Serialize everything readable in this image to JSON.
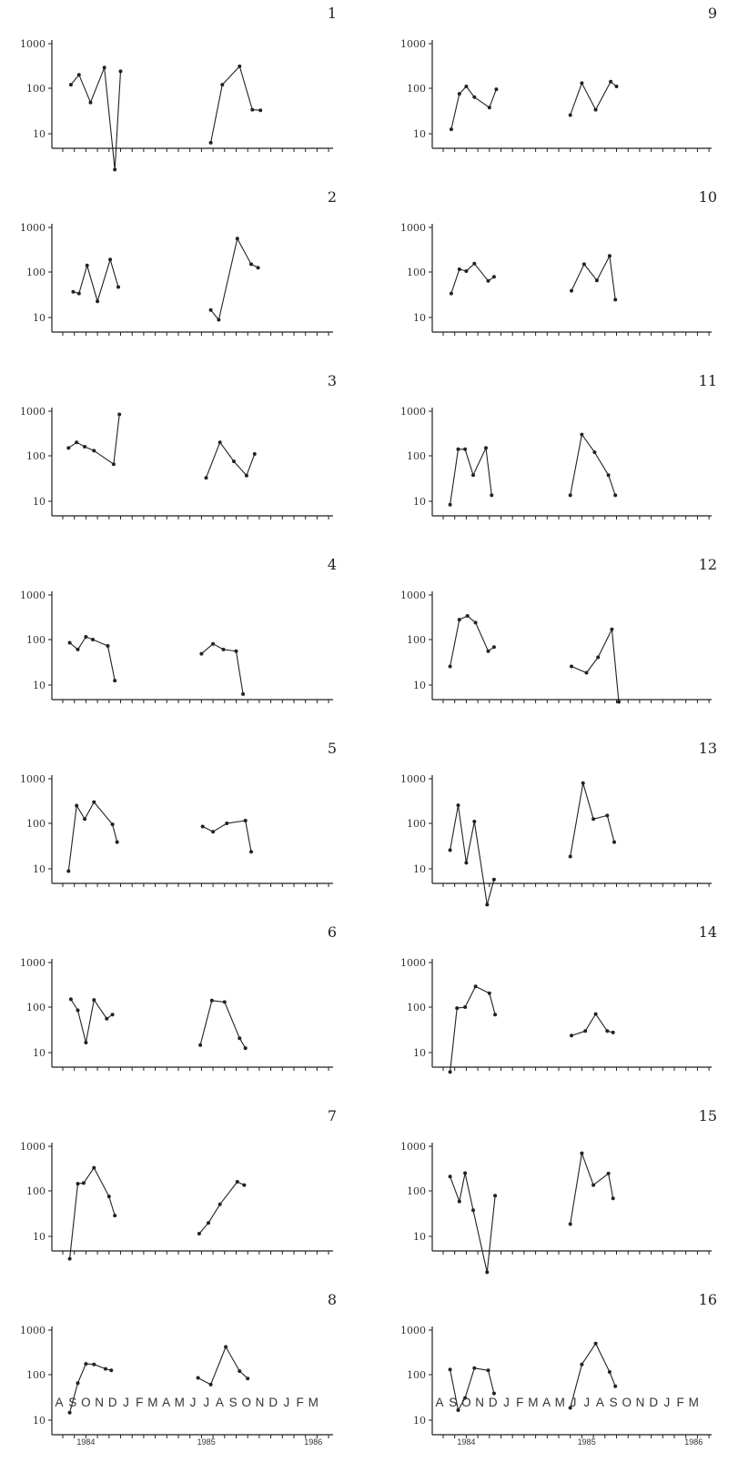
{
  "chart_data": {
    "type": "line",
    "y_scale": "log",
    "ylim": [
      1.5,
      1000
    ],
    "y_ticks": [
      "1000",
      "100",
      "10"
    ],
    "x_ticks": 24,
    "month_labels": [
      "A",
      "S",
      "O",
      "N",
      "D",
      "J",
      "F",
      "M",
      "A",
      "M",
      "J",
      "J",
      "A",
      "S",
      "O",
      "N",
      "D",
      "J",
      "F",
      "M"
    ],
    "year_labels": [
      "1984",
      "1985",
      "1986"
    ],
    "grid": false,
    "legend": "none",
    "panels": [
      {
        "label": "1",
        "segments": [
          [
            [
              0.7,
              120
            ],
            [
              1.4,
              200
            ],
            [
              2.4,
              48
            ],
            [
              3.6,
              290
            ],
            [
              4.5,
              1.5
            ],
            [
              5.0,
              240
            ]
          ],
          [
            [
              12.8,
              6
            ],
            [
              13.8,
              120
            ],
            [
              15.3,
              310
            ],
            [
              16.4,
              33
            ],
            [
              17.1,
              32
            ]
          ]
        ]
      },
      {
        "label": "2",
        "segments": [
          [
            [
              0.9,
              36
            ],
            [
              1.4,
              33
            ],
            [
              2.1,
              140
            ],
            [
              3.0,
              22
            ],
            [
              4.1,
              190
            ],
            [
              4.8,
              46
            ]
          ],
          [
            [
              12.8,
              14
            ],
            [
              13.5,
              8.5
            ],
            [
              15.1,
              560
            ],
            [
              16.3,
              150
            ],
            [
              16.9,
              125
            ]
          ]
        ]
      },
      {
        "label": "3",
        "segments": [
          [
            [
              0.5,
              150
            ],
            [
              1.2,
              200
            ],
            [
              1.9,
              160
            ],
            [
              2.7,
              130
            ],
            [
              4.4,
              65
            ],
            [
              4.9,
              850
            ]
          ],
          [
            [
              12.4,
              32
            ],
            [
              13.6,
              200
            ],
            [
              14.8,
              75
            ],
            [
              15.9,
              36
            ],
            [
              16.6,
              110
            ]
          ]
        ]
      },
      {
        "label": "4",
        "segments": [
          [
            [
              0.6,
              85
            ],
            [
              1.3,
              60
            ],
            [
              2.0,
              115
            ],
            [
              2.6,
              100
            ],
            [
              3.9,
              72
            ],
            [
              4.5,
              12
            ]
          ],
          [
            [
              12.0,
              48
            ],
            [
              13.0,
              80
            ],
            [
              13.9,
              60
            ],
            [
              15.0,
              55
            ],
            [
              15.6,
              6
            ]
          ]
        ]
      },
      {
        "label": "5",
        "segments": [
          [
            [
              0.5,
              8.5
            ],
            [
              1.2,
              250
            ],
            [
              1.9,
              125
            ],
            [
              2.7,
              300
            ],
            [
              4.3,
              95
            ],
            [
              4.7,
              38
            ]
          ],
          [
            [
              12.1,
              85
            ],
            [
              13.0,
              65
            ],
            [
              14.2,
              100
            ],
            [
              15.8,
              115
            ],
            [
              16.3,
              23
            ]
          ]
        ]
      },
      {
        "label": "6",
        "segments": [
          [
            [
              0.7,
              150
            ],
            [
              1.3,
              85
            ],
            [
              2.0,
              16
            ],
            [
              2.7,
              145
            ],
            [
              3.8,
              55
            ],
            [
              4.3,
              68
            ]
          ],
          [
            [
              11.9,
              14
            ],
            [
              12.9,
              140
            ],
            [
              14.0,
              130
            ],
            [
              15.3,
              20
            ],
            [
              15.8,
              12
            ]
          ]
        ]
      },
      {
        "label": "7",
        "segments": [
          [
            [
              0.6,
              3
            ],
            [
              1.3,
              145
            ],
            [
              1.8,
              150
            ],
            [
              2.7,
              330
            ],
            [
              4.0,
              75
            ],
            [
              4.5,
              28
            ]
          ],
          [
            [
              11.8,
              11
            ],
            [
              12.6,
              19
            ],
            [
              13.6,
              50
            ],
            [
              15.1,
              160
            ],
            [
              15.7,
              135
            ]
          ]
        ]
      },
      {
        "label": "8",
        "segments": [
          [
            [
              0.6,
              14
            ],
            [
              1.3,
              65
            ],
            [
              2.0,
              175
            ],
            [
              2.7,
              170
            ],
            [
              3.7,
              135
            ],
            [
              4.2,
              125
            ]
          ],
          [
            [
              11.7,
              85
            ],
            [
              12.8,
              60
            ],
            [
              14.1,
              420
            ],
            [
              15.3,
              120
            ],
            [
              16.0,
              82
            ]
          ]
        ]
      },
      {
        "label": "9",
        "segments": [
          [
            [
              0.7,
              12
            ],
            [
              1.4,
              75
            ],
            [
              2.0,
              110
            ],
            [
              2.7,
              63
            ],
            [
              4.0,
              37
            ],
            [
              4.6,
              95
            ]
          ],
          [
            [
              11.0,
              25
            ],
            [
              12.0,
              130
            ],
            [
              13.2,
              33
            ],
            [
              14.5,
              140
            ],
            [
              15.0,
              110
            ]
          ]
        ]
      },
      {
        "label": "10",
        "segments": [
          [
            [
              0.7,
              33
            ],
            [
              1.4,
              115
            ],
            [
              2.0,
              105
            ],
            [
              2.7,
              155
            ],
            [
              3.9,
              63
            ],
            [
              4.4,
              78
            ]
          ],
          [
            [
              11.1,
              38
            ],
            [
              12.2,
              150
            ],
            [
              13.3,
              65
            ],
            [
              14.4,
              230
            ],
            [
              14.9,
              24
            ]
          ]
        ]
      },
      {
        "label": "11",
        "segments": [
          [
            [
              0.6,
              8
            ],
            [
              1.3,
              140
            ],
            [
              1.9,
              140
            ],
            [
              2.6,
              37
            ],
            [
              3.7,
              150
            ],
            [
              4.2,
              13
            ]
          ],
          [
            [
              11.0,
              13
            ],
            [
              12.0,
              300
            ],
            [
              13.1,
              120
            ],
            [
              14.3,
              37
            ],
            [
              14.9,
              13
            ]
          ]
        ]
      },
      {
        "label": "12",
        "segments": [
          [
            [
              0.6,
              25
            ],
            [
              1.4,
              280
            ],
            [
              2.1,
              340
            ],
            [
              2.8,
              240
            ],
            [
              3.9,
              55
            ],
            [
              4.4,
              68
            ]
          ],
          [
            [
              11.1,
              25
            ],
            [
              12.4,
              18
            ],
            [
              13.4,
              40
            ],
            [
              14.6,
              170
            ],
            [
              15.2,
              4
            ]
          ]
        ]
      },
      {
        "label": "13",
        "segments": [
          [
            [
              0.6,
              25
            ],
            [
              1.3,
              255
            ],
            [
              2.0,
              13
            ],
            [
              2.7,
              110
            ],
            [
              3.8,
              1.5
            ],
            [
              4.4,
              5.5
            ]
          ],
          [
            [
              11.0,
              18
            ],
            [
              12.1,
              800
            ],
            [
              13.0,
              125
            ],
            [
              14.2,
              150
            ],
            [
              14.8,
              38
            ]
          ]
        ]
      },
      {
        "label": "14",
        "segments": [
          [
            [
              0.6,
              3.5
            ],
            [
              1.2,
              95
            ],
            [
              1.9,
              100
            ],
            [
              2.8,
              290
            ],
            [
              4.0,
              205
            ],
            [
              4.5,
              68
            ]
          ],
          [
            [
              11.1,
              23
            ],
            [
              12.3,
              29
            ],
            [
              13.2,
              70
            ],
            [
              14.2,
              29
            ],
            [
              14.7,
              27
            ]
          ]
        ]
      },
      {
        "label": "15",
        "segments": [
          [
            [
              0.6,
              210
            ],
            [
              1.4,
              58
            ],
            [
              1.9,
              250
            ],
            [
              2.6,
              37
            ],
            [
              3.8,
              1.5
            ],
            [
              4.5,
              78
            ]
          ],
          [
            [
              11.0,
              18
            ],
            [
              12.0,
              700
            ],
            [
              13.0,
              135
            ],
            [
              14.3,
              245
            ],
            [
              14.7,
              68
            ]
          ]
        ]
      },
      {
        "label": "16",
        "segments": [
          [
            [
              0.6,
              130
            ],
            [
              1.3,
              16
            ],
            [
              1.9,
              30
            ],
            [
              2.7,
              140
            ],
            [
              3.9,
              125
            ],
            [
              4.4,
              38
            ]
          ],
          [
            [
              11.0,
              18
            ],
            [
              12.0,
              170
            ],
            [
              13.2,
              500
            ],
            [
              14.4,
              115
            ],
            [
              14.9,
              55
            ]
          ]
        ]
      }
    ]
  }
}
